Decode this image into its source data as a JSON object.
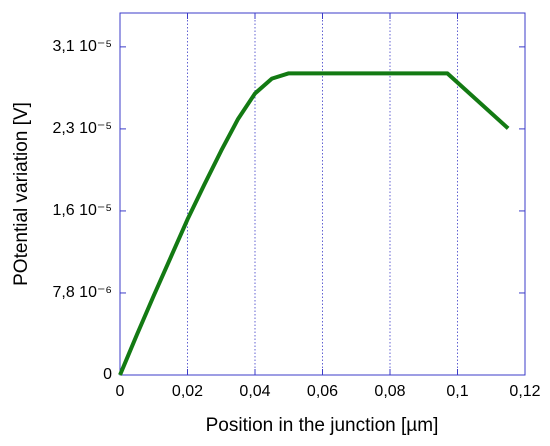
{
  "chart_data": {
    "type": "line",
    "x_label": "Position in the junction [µm]",
    "y_label": "POtential variation [V]",
    "x": [
      0,
      0.005,
      0.01,
      0.015,
      0.02,
      0.025,
      0.03,
      0.035,
      0.04,
      0.045,
      0.05,
      0.097,
      0.115
    ],
    "series": [
      {
        "color": "#137a13",
        "values": [
          0,
          3.8e-06,
          7.5e-06,
          1.11e-05,
          1.47e-05,
          1.8e-05,
          2.12e-05,
          2.42e-05,
          2.66e-05,
          2.8e-05,
          2.85e-05,
          2.85e-05,
          2.33e-05
        ]
      }
    ],
    "xlim": [
      0,
      0.12
    ],
    "xticks": [
      0,
      {
        "value": 0.02,
        "label": "0,02"
      },
      {
        "value": 0.04,
        "label": "0,04"
      },
      {
        "value": 0.06,
        "label": "0,06"
      },
      {
        "value": 0.08,
        "label": "0,08"
      },
      {
        "value": 0.1,
        "label": "0,1"
      },
      {
        "value": 0.12,
        "label": "0,12"
      }
    ],
    "ylim": [
      0,
      3.42e-05
    ],
    "yticks": [
      0,
      {
        "value": 7.75e-06,
        "label": "7,8 10⁻⁶"
      },
      {
        "value": 1.55e-05,
        "label": "1,6 10⁻⁵"
      },
      {
        "value": 2.325e-05,
        "label": "2,3 10⁻⁵"
      },
      {
        "value": 3.1e-05,
        "label": "3,1 10⁻⁵"
      }
    ],
    "grid": "x"
  }
}
